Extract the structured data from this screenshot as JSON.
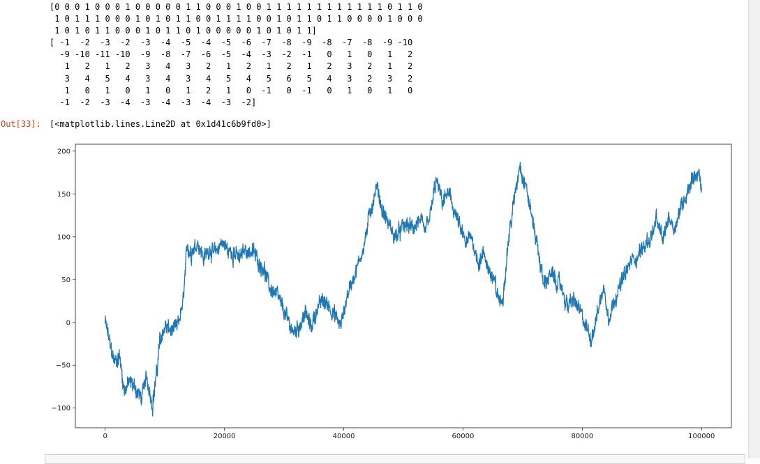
{
  "cell_output": {
    "stdout_lines": [
      "[0 0 0 1 0 0 0 1 0 0 0 0 0 1 1 0 0 0 1 0 0 1 1 1 1 1 1 1 1 1 1 1 1 0 1 1 0",
      " 1 0 1 1 1 0 0 0 1 0 1 0 1 1 0 0 1 1 1 1 0 0 1 0 1 1 0 1 1 0 0 0 0 1 0 0 0",
      " 1 0 1 0 1 1 0 0 0 1 0 1 1 0 1 0 0 0 0 0 1 0 1 0 1 1]",
      "[ -1  -2  -3  -2  -3  -4  -5  -4  -5  -6  -7  -8  -9  -8  -7  -8  -9 -10",
      "  -9 -10 -11 -10  -9  -8  -7  -6  -5  -4  -3  -2  -1   0   1   0   1   2",
      "   1   2   1   2   3   4   3   2   1   2   1   2   1   2   3   2   1   2",
      "   3   4   5   4   3   4   3   4   5   4   5   6   5   4   3   2   3   2",
      "   1   0   1   0   1   0   1   2   1   0  -1   0  -1   0   1   0   1   0",
      "  -1  -2  -3  -4  -3  -4  -3  -4  -3  -2]"
    ],
    "prompt": "Out[33]:",
    "repr": "[<matplotlib.lines.Line2D at 0x1d41c6b9fd0>]"
  },
  "chart_data": {
    "type": "line",
    "title": "",
    "xlabel": "",
    "ylabel": "",
    "xlim": [
      -5000,
      105000
    ],
    "ylim": [
      -123,
      208
    ],
    "xticks": [
      0,
      20000,
      40000,
      60000,
      80000,
      100000
    ],
    "xtick_labels": [
      "0",
      "20000",
      "40000",
      "60000",
      "80000",
      "100000"
    ],
    "yticks": [
      -100,
      -50,
      0,
      50,
      100,
      150,
      200
    ],
    "ytick_labels": [
      "−100",
      "−50",
      "0",
      "50",
      "100",
      "150",
      "200"
    ],
    "grid": false,
    "line_color": "#1f77b4",
    "series": [
      {
        "x": [
          0,
          800,
          1600,
          2400,
          3200,
          4000,
          5000,
          6000,
          7000,
          8000,
          8600,
          9200,
          10000,
          11000,
          12000,
          13000,
          13800,
          14500,
          15500,
          16500,
          17500,
          18500,
          19500,
          20500,
          21500,
          22500,
          23500,
          24500,
          25500,
          26500,
          27500,
          28500,
          29500,
          30500,
          31500,
          32500,
          33500,
          34500,
          35500,
          36500,
          37500,
          38500,
          39500,
          40500,
          41500,
          42500,
          43500,
          44500,
          45500,
          46500,
          47500,
          48500,
          49500,
          50500,
          51500,
          52500,
          53500,
          54500,
          55500,
          56500,
          57500,
          58500,
          59500,
          60500,
          61500,
          62500,
          63500,
          64500,
          65500,
          66500,
          67500,
          68500,
          69500,
          70500,
          71500,
          72500,
          73500,
          74500,
          75500,
          76500,
          77500,
          78500,
          79500,
          80500,
          81500,
          82500,
          83500,
          84500,
          85500,
          86500,
          87500,
          88500,
          89500,
          90500,
          91500,
          92500,
          93500,
          94500,
          95500,
          96500,
          97500,
          98500,
          99500,
          100000
        ],
        "y": [
          0,
          -25,
          -48,
          -38,
          -80,
          -70,
          -75,
          -88,
          -65,
          -95,
          -60,
          -20,
          -5,
          -10,
          -8,
          20,
          90,
          80,
          95,
          75,
          85,
          80,
          95,
          85,
          80,
          75,
          85,
          82,
          75,
          65,
          40,
          35,
          20,
          5,
          -10,
          -5,
          10,
          -5,
          15,
          25,
          20,
          10,
          -5,
          30,
          50,
          70,
          95,
          130,
          160,
          130,
          115,
          100,
          105,
          115,
          110,
          118,
          105,
          125,
          165,
          140,
          150,
          130,
          110,
          90,
          100,
          70,
          80,
          60,
          40,
          20,
          90,
          140,
          185,
          160,
          125,
          90,
          45,
          55,
          50,
          40,
          20,
          25,
          15,
          -5,
          -20,
          10,
          40,
          5,
          30,
          45,
          60,
          75,
          80,
          90,
          100,
          120,
          95,
          125,
          110,
          135,
          150,
          170,
          175,
          155
        ]
      }
    ]
  }
}
